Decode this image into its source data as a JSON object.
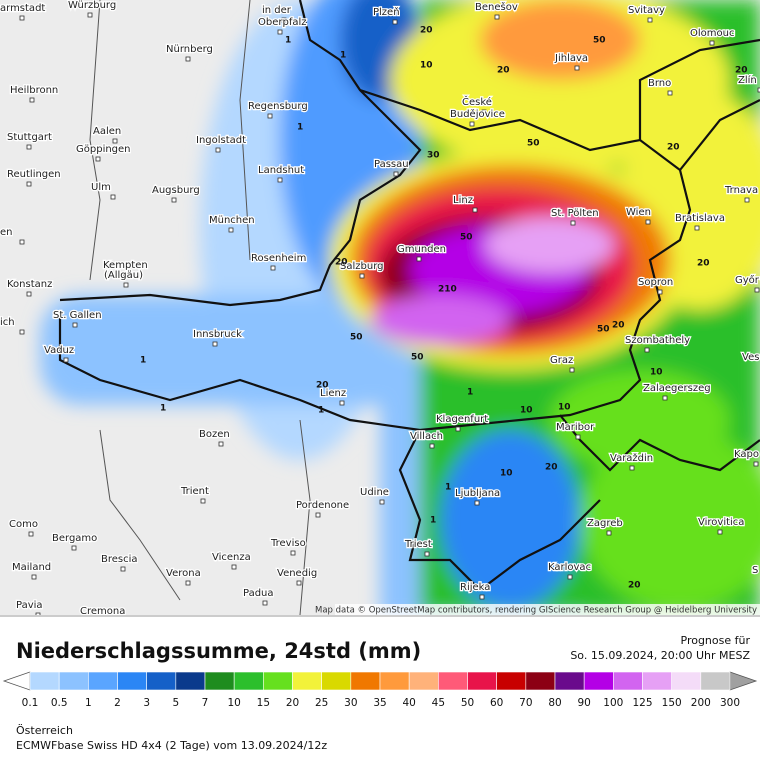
{
  "map": {
    "cities": [
      "armstadt",
      "Würzburg",
      "in der",
      "Oberpfalz",
      "Plzeň",
      "Benešov",
      "Svitavy",
      "Olomouc",
      "Nürnberg",
      "Jihlava",
      "Brno",
      "Zlín",
      "Heilbronn",
      "Regensburg",
      "České",
      "Budějovice",
      "Aalen",
      "Ingolstadt",
      "Stuttgart",
      "Göppingen",
      "Passau",
      "Landshut",
      "Reutlingen",
      "Ulm",
      "Augsburg",
      "Trnava",
      "Linz",
      "St. Pölten",
      "Wien",
      "Bratislava",
      "München",
      "en",
      "Gmunden",
      "Rosenheim",
      "Kempten",
      "(Allgäu)",
      "Salzburg",
      "Győr",
      "Sopron",
      "Konstanz",
      "St. Gallen",
      "ich",
      "Innsbruck",
      "Szombathely",
      "Vaduz",
      "Graz",
      "Ves",
      "Zalaegerszeg",
      "Lienz",
      "Klagenfurt",
      "Maribor",
      "Villach",
      "Bozen",
      "Kapo",
      "Varaždin",
      "Trient",
      "Udine",
      "Ljubljana",
      "Pordenone",
      "Virovitica",
      "Como",
      "Zagreb",
      "Bergamo",
      "Triest",
      "Treviso",
      "Brescia",
      "Vicenza",
      "Karlovac",
      "Mailand",
      "Verona",
      "Venedig",
      "S",
      "Padua",
      "Rijeka",
      "Pavia",
      "Cremona"
    ],
    "contour_labels": [
      "1",
      "1",
      "1",
      "1",
      "1",
      "1",
      "1",
      "1",
      "1",
      "10",
      "10",
      "10",
      "10",
      "10",
      "20",
      "20",
      "20",
      "20",
      "20",
      "20",
      "20",
      "20",
      "20",
      "20",
      "50",
      "50",
      "50",
      "50",
      "50",
      "50",
      "30",
      "210"
    ],
    "attribution": "Map data © OpenStreetMap contributors, rendering GIScience Research Group @ Heidelberg University"
  },
  "header": {
    "title": "Niederschlagssumme, 24std (mm)",
    "forecast_label": "Prognose für",
    "forecast_time": "So. 15.09.2024, 20:00 Uhr MESZ"
  },
  "legend": {
    "labels": [
      "0.1",
      "0.5",
      "1",
      "2",
      "3",
      "5",
      "7",
      "10",
      "15",
      "20",
      "25",
      "30",
      "35",
      "40",
      "45",
      "50",
      "60",
      "70",
      "80",
      "90",
      "100",
      "125",
      "150",
      "200",
      "300"
    ],
    "colors": [
      "#b4d8ff",
      "#8cc2ff",
      "#5aa5ff",
      "#2b86f5",
      "#1560c8",
      "#0a3a8c",
      "#1e8c1e",
      "#2cbf2c",
      "#66e01e",
      "#f2f23a",
      "#d9d900",
      "#f07800",
      "#ff9a3c",
      "#ffb27a",
      "#ff5a78",
      "#e8144a",
      "#c80000",
      "#8c0014",
      "#6a0a8c",
      "#b400e6",
      "#d264f0",
      "#e6a0f5",
      "#f4dcf8",
      "#c8c8c8"
    ],
    "under_color": "#ffffff",
    "over_color": "#a0a0a0"
  },
  "footer": {
    "region": "Österreich",
    "model": "ECMWFbase Swiss HD 4x4 (2 Tage) vom 13.09.2024/12z"
  }
}
